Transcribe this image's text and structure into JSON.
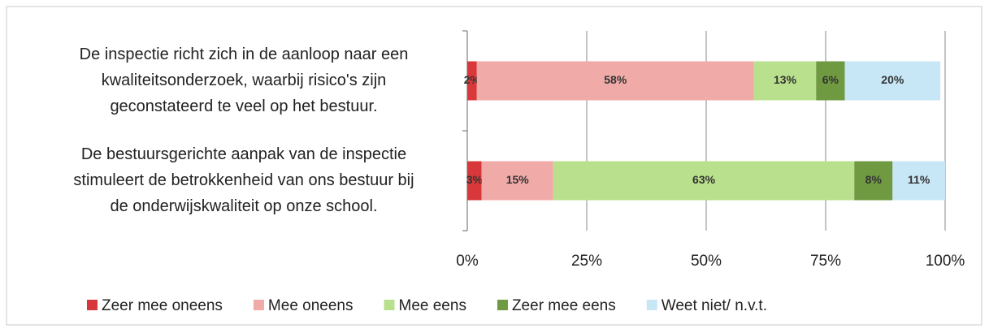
{
  "chart_data": {
    "type": "stacked-bar-horizontal",
    "categories": [
      [
        "De inspectie richt zich in de aanloop naar een",
        "kwaliteitsonderzoek, waarbij risico's zijn",
        "geconstateerd  te veel op het bestuur."
      ],
      [
        "De bestuursgerichte aanpak van de inspectie",
        "stimuleert de betrokkenheid van ons bestuur bij",
        "de onderwijskwaliteit op onze school."
      ]
    ],
    "series": [
      {
        "name": "Zeer mee oneens",
        "color": "#d9383a",
        "values": [
          2,
          3
        ],
        "value_labels": [
          "2%",
          "3%"
        ]
      },
      {
        "name": "Mee oneens",
        "color": "#f0aaa8",
        "values": [
          58,
          15
        ],
        "value_labels": [
          "58%",
          "15%"
        ]
      },
      {
        "name": "Mee eens",
        "color": "#b9e08c",
        "values": [
          13,
          63
        ],
        "value_labels": [
          "13%",
          "63%"
        ]
      },
      {
        "name": "Zeer mee eens",
        "color": "#6f9a42",
        "values": [
          6,
          8
        ],
        "value_labels": [
          "6%",
          "8%"
        ]
      },
      {
        "name": "Weet niet/ n.v.t.",
        "color": "#c8e7f6",
        "values": [
          20,
          11
        ],
        "value_labels": [
          "20%",
          "11%"
        ]
      }
    ],
    "xlim": [
      0,
      100
    ],
    "xticks": [
      {
        "value": 0,
        "label": "0%"
      },
      {
        "value": 25,
        "label": "25%"
      },
      {
        "value": 50,
        "label": "50%"
      },
      {
        "value": 75,
        "label": "75%"
      },
      {
        "value": 100,
        "label": "100%"
      }
    ],
    "grid": true,
    "legend": "bottom"
  }
}
